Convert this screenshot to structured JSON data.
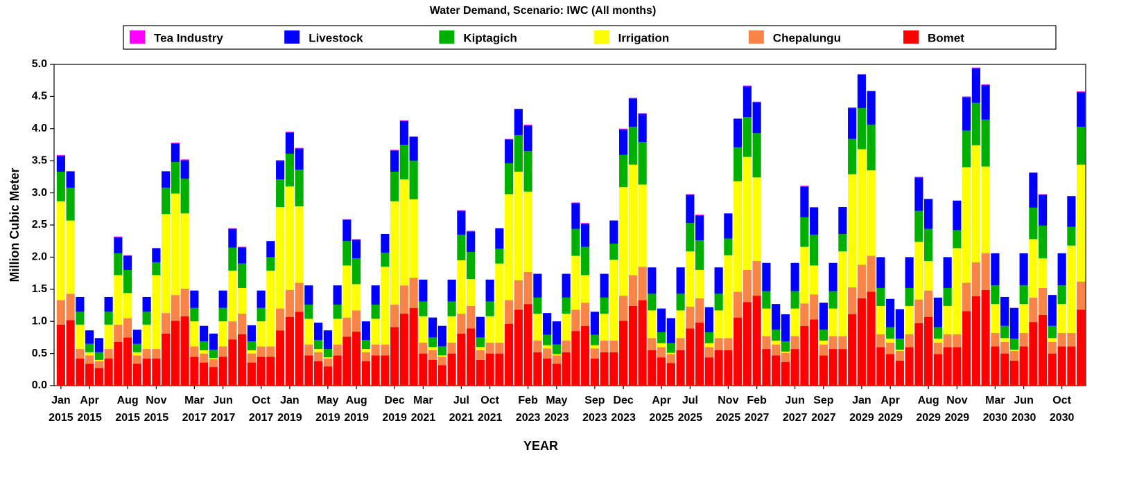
{
  "chart_data": {
    "type": "stacked-bar",
    "title": "Water Demand, Scenario: IWC (All months)",
    "x_label": "YEAR",
    "y_label": "Million Cubic Meter",
    "ylim": [
      0,
      5
    ],
    "yticks": [
      {
        "value": 0,
        "label": "0.0"
      },
      0.5,
      {
        "value": 1,
        "label": "1.0"
      },
      1.5,
      {
        "value": 2,
        "label": "2.0"
      },
      2.5,
      {
        "value": 3,
        "label": "3.0"
      },
      3.5,
      {
        "value": 4,
        "label": "4.0"
      },
      4.5,
      {
        "value": 5,
        "label": "5.0"
      }
    ],
    "categories": [
      "Jan 2015",
      null,
      null,
      "Apr 2015",
      null,
      null,
      null,
      "Aug 2015",
      null,
      null,
      "Nov 2015",
      null,
      null,
      null,
      "Mar 2017",
      null,
      null,
      "Jun 2017",
      null,
      null,
      null,
      "Oct 2017",
      null,
      null,
      "Jan 2019",
      null,
      null,
      null,
      "May 2019",
      null,
      null,
      "Aug 2019",
      null,
      null,
      null,
      "Dec 2019",
      null,
      null,
      "Mar 2021",
      null,
      null,
      null,
      "Jul 2021",
      null,
      null,
      "Oct 2021",
      null,
      null,
      null,
      "Feb 2023",
      null,
      null,
      "May 2023",
      null,
      null,
      null,
      "Sep 2023",
      null,
      null,
      "Dec 2023",
      null,
      null,
      null,
      "Apr 2025",
      null,
      null,
      "Jul 2025",
      null,
      null,
      null,
      "Nov 2025",
      null,
      null,
      "Feb 2027",
      null,
      null,
      null,
      "Jun 2027",
      null,
      null,
      "Sep 2027",
      null,
      null,
      null,
      "Jan 2029",
      null,
      null,
      "Apr 2029",
      null,
      null,
      null,
      "Aug 2029",
      null,
      null,
      "Nov 2029",
      null,
      null,
      null,
      "Mar 2030",
      null,
      null,
      "Jun 2030",
      null,
      null,
      null,
      "Oct 2030",
      null,
      null
    ],
    "series": [
      {
        "name": "Tea Industry",
        "color": "#ff00ff",
        "values": [
          0.01,
          0.01,
          0,
          0,
          0,
          0,
          0.01,
          0.01,
          0,
          0,
          0,
          0.01,
          0.01,
          0.01,
          0,
          0,
          0,
          0,
          0.01,
          0.01,
          0,
          0,
          0,
          0.01,
          0.01,
          0.01,
          0,
          0,
          0,
          0,
          0.01,
          0.01,
          0,
          0,
          0,
          0.01,
          0.01,
          0.01,
          0,
          0,
          0,
          0,
          0.01,
          0.01,
          0,
          0,
          0,
          0.01,
          0.01,
          0.01,
          0,
          0,
          0,
          0,
          0.01,
          0.01,
          0,
          0,
          0,
          0.01,
          0.01,
          0.01,
          0,
          0,
          0,
          0,
          0.01,
          0.01,
          0,
          0,
          0,
          0.01,
          0.01,
          0.01,
          0,
          0,
          0,
          0,
          0.01,
          0.01,
          0,
          0,
          0,
          0.01,
          0.01,
          0.01,
          0,
          0,
          0,
          0,
          0.01,
          0.01,
          0,
          0,
          0,
          0.01,
          0.01,
          0.01,
          0,
          0,
          0,
          0,
          0.01,
          0.01,
          0,
          0,
          0,
          0.01
        ]
      },
      {
        "name": "Livestock",
        "color": "#0000ff",
        "values": [
          0.25,
          0.25,
          0.23,
          0.21,
          0.22,
          0.23,
          0.25,
          0.22,
          0.22,
          0.23,
          0.22,
          0.25,
          0.29,
          0.29,
          0.27,
          0.24,
          0.25,
          0.27,
          0.29,
          0.25,
          0.25,
          0.27,
          0.25,
          0.29,
          0.33,
          0.33,
          0.3,
          0.27,
          0.29,
          0.3,
          0.33,
          0.29,
          0.29,
          0.3,
          0.29,
          0.33,
          0.37,
          0.37,
          0.34,
          0.31,
          0.32,
          0.34,
          0.37,
          0.32,
          0.32,
          0.34,
          0.32,
          0.37,
          0.4,
          0.4,
          0.37,
          0.34,
          0.36,
          0.37,
          0.4,
          0.36,
          0.36,
          0.37,
          0.36,
          0.4,
          0.44,
          0.44,
          0.41,
          0.37,
          0.39,
          0.41,
          0.44,
          0.39,
          0.39,
          0.41,
          0.39,
          0.44,
          0.48,
          0.48,
          0.44,
          0.4,
          0.42,
          0.44,
          0.48,
          0.42,
          0.42,
          0.44,
          0.42,
          0.48,
          0.52,
          0.52,
          0.48,
          0.44,
          0.46,
          0.48,
          0.52,
          0.46,
          0.46,
          0.48,
          0.46,
          0.52,
          0.54,
          0.54,
          0.5,
          0.45,
          0.48,
          0.5,
          0.54,
          0.48,
          0.48,
          0.5,
          0.48,
          0.54
        ]
      },
      {
        "name": "Kiptagich",
        "color": "#00b000",
        "values": [
          0.46,
          0.51,
          0.2,
          0.13,
          0.12,
          0.2,
          0.34,
          0.36,
          0.13,
          0.2,
          0.2,
          0.41,
          0.49,
          0.54,
          0.21,
          0.14,
          0.13,
          0.21,
          0.36,
          0.38,
          0.14,
          0.21,
          0.21,
          0.43,
          0.51,
          0.57,
          0.22,
          0.14,
          0.13,
          0.22,
          0.38,
          0.4,
          0.14,
          0.22,
          0.22,
          0.46,
          0.54,
          0.6,
          0.23,
          0.15,
          0.14,
          0.23,
          0.4,
          0.42,
          0.15,
          0.23,
          0.23,
          0.48,
          0.57,
          0.63,
          0.25,
          0.16,
          0.15,
          0.25,
          0.42,
          0.44,
          0.16,
          0.25,
          0.25,
          0.5,
          0.59,
          0.66,
          0.26,
          0.17,
          0.15,
          0.26,
          0.44,
          0.46,
          0.17,
          0.26,
          0.26,
          0.53,
          0.62,
          0.69,
          0.27,
          0.17,
          0.16,
          0.27,
          0.46,
          0.48,
          0.17,
          0.27,
          0.27,
          0.55,
          0.64,
          0.71,
          0.28,
          0.18,
          0.17,
          0.28,
          0.48,
          0.5,
          0.18,
          0.28,
          0.28,
          0.57,
          0.66,
          0.73,
          0.29,
          0.19,
          0.17,
          0.29,
          0.49,
          0.51,
          0.19,
          0.29,
          0.29,
          0.59
        ]
      },
      {
        "name": "Irrigation",
        "color": "#ffff00",
        "values": [
          1.54,
          1.14,
          0.38,
          0.05,
          0.02,
          0.38,
          0.77,
          0.39,
          0.05,
          0.38,
          1.15,
          1.54,
          1.58,
          1.17,
          0.39,
          0.05,
          0.02,
          0.39,
          0.79,
          0.4,
          0.05,
          0.39,
          1.18,
          1.58,
          1.61,
          1.19,
          0.4,
          0.05,
          0.02,
          0.4,
          0.81,
          0.41,
          0.05,
          0.4,
          1.21,
          1.61,
          1.65,
          1.22,
          0.41,
          0.05,
          0.02,
          0.41,
          0.83,
          0.42,
          0.05,
          0.41,
          1.23,
          1.65,
          1.69,
          1.25,
          0.42,
          0.05,
          0.02,
          0.42,
          0.84,
          0.43,
          0.05,
          0.42,
          1.26,
          1.69,
          1.72,
          1.28,
          0.43,
          0.06,
          0.02,
          0.43,
          0.86,
          0.44,
          0.06,
          0.43,
          1.29,
          1.72,
          1.76,
          1.3,
          0.43,
          0.06,
          0.02,
          0.43,
          0.88,
          0.45,
          0.06,
          0.43,
          1.32,
          1.76,
          1.8,
          1.33,
          0.44,
          0.06,
          0.02,
          0.44,
          0.9,
          0.46,
          0.06,
          0.44,
          1.34,
          1.8,
          1.82,
          1.35,
          0.45,
          0.06,
          0.02,
          0.45,
          0.91,
          0.46,
          0.06,
          0.45,
          1.36,
          1.82
        ]
      },
      {
        "name": "Chepalungu",
        "color": "#f98447",
        "values": [
          0.38,
          0.41,
          0.15,
          0.13,
          0.11,
          0.15,
          0.27,
          0.3,
          0.13,
          0.15,
          0.15,
          0.32,
          0.4,
          0.43,
          0.16,
          0.14,
          0.12,
          0.16,
          0.28,
          0.32,
          0.14,
          0.16,
          0.16,
          0.34,
          0.42,
          0.45,
          0.17,
          0.14,
          0.12,
          0.17,
          0.3,
          0.33,
          0.14,
          0.17,
          0.17,
          0.35,
          0.44,
          0.47,
          0.17,
          0.15,
          0.13,
          0.17,
          0.31,
          0.35,
          0.15,
          0.17,
          0.17,
          0.37,
          0.46,
          0.5,
          0.18,
          0.16,
          0.13,
          0.18,
          0.33,
          0.36,
          0.16,
          0.18,
          0.18,
          0.39,
          0.48,
          0.52,
          0.19,
          0.16,
          0.14,
          0.19,
          0.34,
          0.38,
          0.16,
          0.19,
          0.19,
          0.4,
          0.5,
          0.54,
          0.2,
          0.17,
          0.14,
          0.2,
          0.35,
          0.39,
          0.17,
          0.2,
          0.2,
          0.42,
          0.52,
          0.56,
          0.2,
          0.18,
          0.15,
          0.2,
          0.37,
          0.41,
          0.18,
          0.2,
          0.2,
          0.44,
          0.53,
          0.57,
          0.21,
          0.18,
          0.15,
          0.21,
          0.38,
          0.42,
          0.18,
          0.21,
          0.21,
          0.44
        ]
      },
      {
        "name": "Bomet",
        "color": "#ff0000",
        "values": [
          0.95,
          1.02,
          0.42,
          0.34,
          0.27,
          0.42,
          0.68,
          0.75,
          0.34,
          0.42,
          0.42,
          0.81,
          1.01,
          1.08,
          0.45,
          0.36,
          0.29,
          0.45,
          0.72,
          0.8,
          0.36,
          0.45,
          0.45,
          0.86,
          1.07,
          1.15,
          0.47,
          0.38,
          0.3,
          0.47,
          0.76,
          0.84,
          0.38,
          0.47,
          0.47,
          0.91,
          1.12,
          1.21,
          0.5,
          0.4,
          0.32,
          0.5,
          0.81,
          0.89,
          0.4,
          0.5,
          0.5,
          0.96,
          1.18,
          1.27,
          0.52,
          0.42,
          0.34,
          0.52,
          0.85,
          0.93,
          0.42,
          0.52,
          0.52,
          1.01,
          1.24,
          1.33,
          0.55,
          0.44,
          0.35,
          0.55,
          0.89,
          0.98,
          0.44,
          0.55,
          0.55,
          1.06,
          1.3,
          1.4,
          0.57,
          0.47,
          0.37,
          0.57,
          0.93,
          1.03,
          0.47,
          0.57,
          0.57,
          1.11,
          1.36,
          1.46,
          0.6,
          0.49,
          0.39,
          0.6,
          0.97,
          1.07,
          0.49,
          0.6,
          0.6,
          1.16,
          1.39,
          1.49,
          0.61,
          0.5,
          0.39,
          0.61,
          0.99,
          1.1,
          0.5,
          0.61,
          0.61,
          1.18
        ]
      }
    ]
  }
}
